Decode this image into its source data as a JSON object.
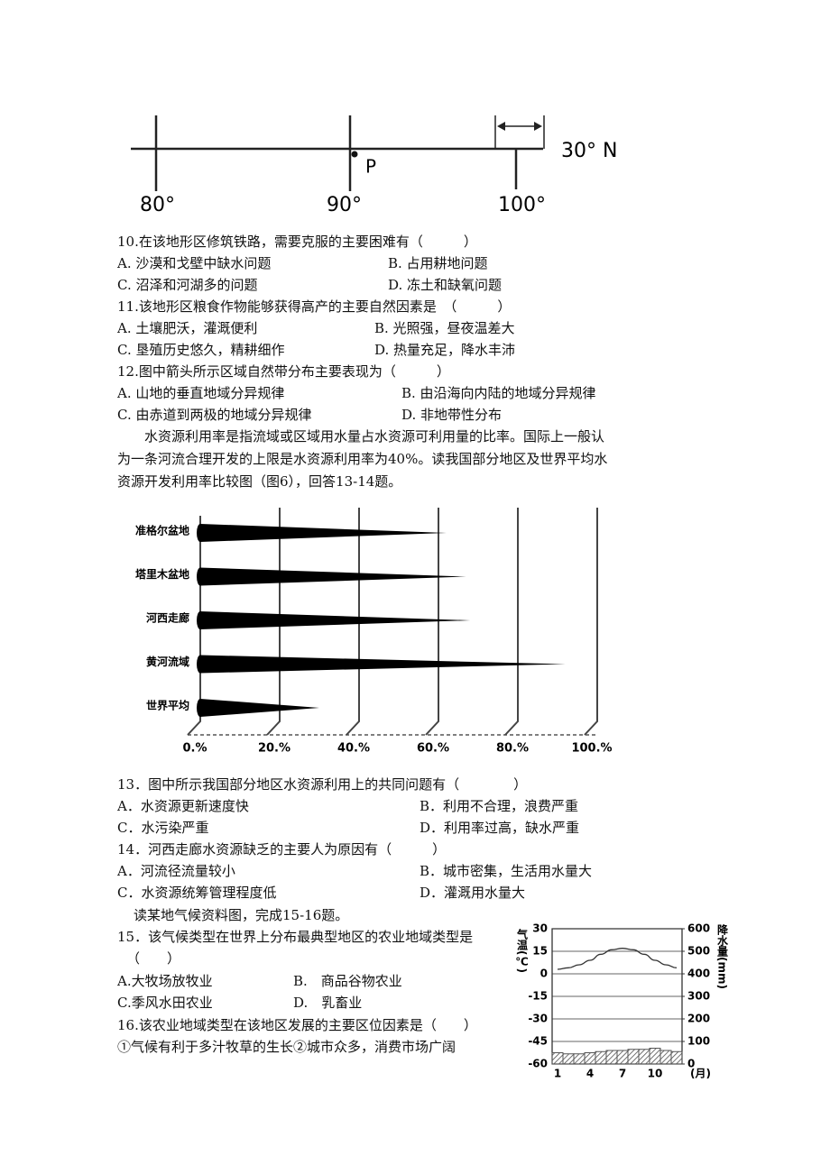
{
  "map_figure": {
    "labels": [
      "80°",
      "90°",
      "100°",
      "30° N",
      "P"
    ]
  },
  "questions": [
    {
      "stem": [
        "10.在该地形区修筑铁路，需要克服的主要困难有（　　　）"
      ],
      "options": [
        "A. 沙漠和戈壁中缺水问题",
        "B. 占用耕地问题",
        "C. 沼泽和河湖多的问题",
        "D. 冻土和缺氧问题"
      ]
    },
    {
      "stem": [
        "11.该地形区粮食作物能够获得高产的主要自然因素是　（　　　）"
      ],
      "options": [
        "A. 土壤肥沃，灌溉便利",
        "B. 光照强，昼夜温差大",
        "C. 垦殖历史悠久，精耕细作",
        "D. 热量充足，降水丰沛"
      ]
    },
    {
      "stem": [
        "12.图中箭头所示区域自然带分布主要表现为（　　　）"
      ],
      "options": [
        "A. 山地的垂直地域分异规律",
        "B. 由沿海向内陆的地域分异规律",
        "C. 由赤道到两极的地域分异规律",
        "D. 非地带性分布"
      ]
    },
    {
      "stem": [
        "13．图中所示我国部分地区水资源利用上的共同问题有（　　　　）"
      ],
      "options": [
        "A．水资源更新速度快",
        "B．利用不合理，浪费严重",
        "C．水污染严重",
        "D．利用率过高，缺水严重"
      ]
    },
    {
      "stem": [
        "14．河西走廊水资源缺乏的主要人为原因有（　　　）"
      ],
      "options": [
        "A．河流径流量较小",
        "B．城市密集，生活用水量大",
        "C．水资源统筹管理程度低",
        "D．灌溉用水量大"
      ]
    },
    {
      "stem": [
        "15．该气候类型在世界上分布最典型地区的农业地域类型是",
        "（　　）"
      ],
      "options": [
        "A.大牧场放牧业",
        "B.　商品谷物农业",
        "C.季风水田农业",
        "D.　乳畜业"
      ]
    },
    {
      "stem": [
        "16.该农业地域类型在该地区发展的主要区位因素是（　　）",
        "①气候有利于多汁牧草的生长②城市众多，消费市场广阔"
      ],
      "options": []
    }
  ],
  "passage": "水资源利用率是指流域或区域用水量占水资源可利用量的比率。国际上一般认为一条河流合理开发的上限是水资源利用率为40%。读我国部分地区及世界平均水资源开发利用率比较图（图6），回答13-14题。",
  "intro": "读某地气候资料图，完成15-16题。",
  "chart_data": [
    {
      "type": "bar",
      "orientation": "horizontal",
      "categories": [
        "准格尔盆地",
        "塔里木盆地",
        "河西走廊",
        "黄河流域",
        "世界平均"
      ],
      "values": [
        62,
        67,
        68,
        92,
        30
      ],
      "color": "#000000",
      "xlim": [
        0,
        100
      ],
      "xticks": [
        {
          "value": 0,
          "label": "0.%"
        },
        {
          "value": 20,
          "label": "20.%"
        },
        {
          "value": 40,
          "label": "40.%"
        },
        {
          "value": 60,
          "label": "60.%"
        },
        {
          "value": 80,
          "label": "80.%"
        },
        {
          "value": 100,
          "label": "100.%"
        }
      ],
      "grid": true
    },
    {
      "type": "climate",
      "y_label": "气温(℃)",
      "y2_label": "降水量(mm)",
      "x_label": "(月)",
      "categories": [
        1,
        null,
        null,
        4,
        null,
        null,
        7,
        null,
        null,
        10,
        null,
        null
      ],
      "series": [
        {
          "type": "line",
          "axis": "y",
          "color": "#333333",
          "values": [
            3,
            4,
            6,
            9,
            13,
            16,
            17,
            16,
            13,
            9,
            6,
            4
          ]
        },
        {
          "type": "bar",
          "axis": "y2",
          "color": "#555555",
          "values": [
            50,
            45,
            45,
            50,
            55,
            60,
            60,
            65,
            65,
            70,
            60,
            55
          ]
        }
      ],
      "ylim": [
        -60,
        30
      ],
      "yticks": [
        30,
        15,
        0,
        -15,
        -30,
        -45,
        -60
      ],
      "y2lim": [
        0,
        600
      ],
      "y2ticks": [
        600,
        500,
        400,
        300,
        200,
        100,
        0
      ],
      "grid": true
    }
  ]
}
